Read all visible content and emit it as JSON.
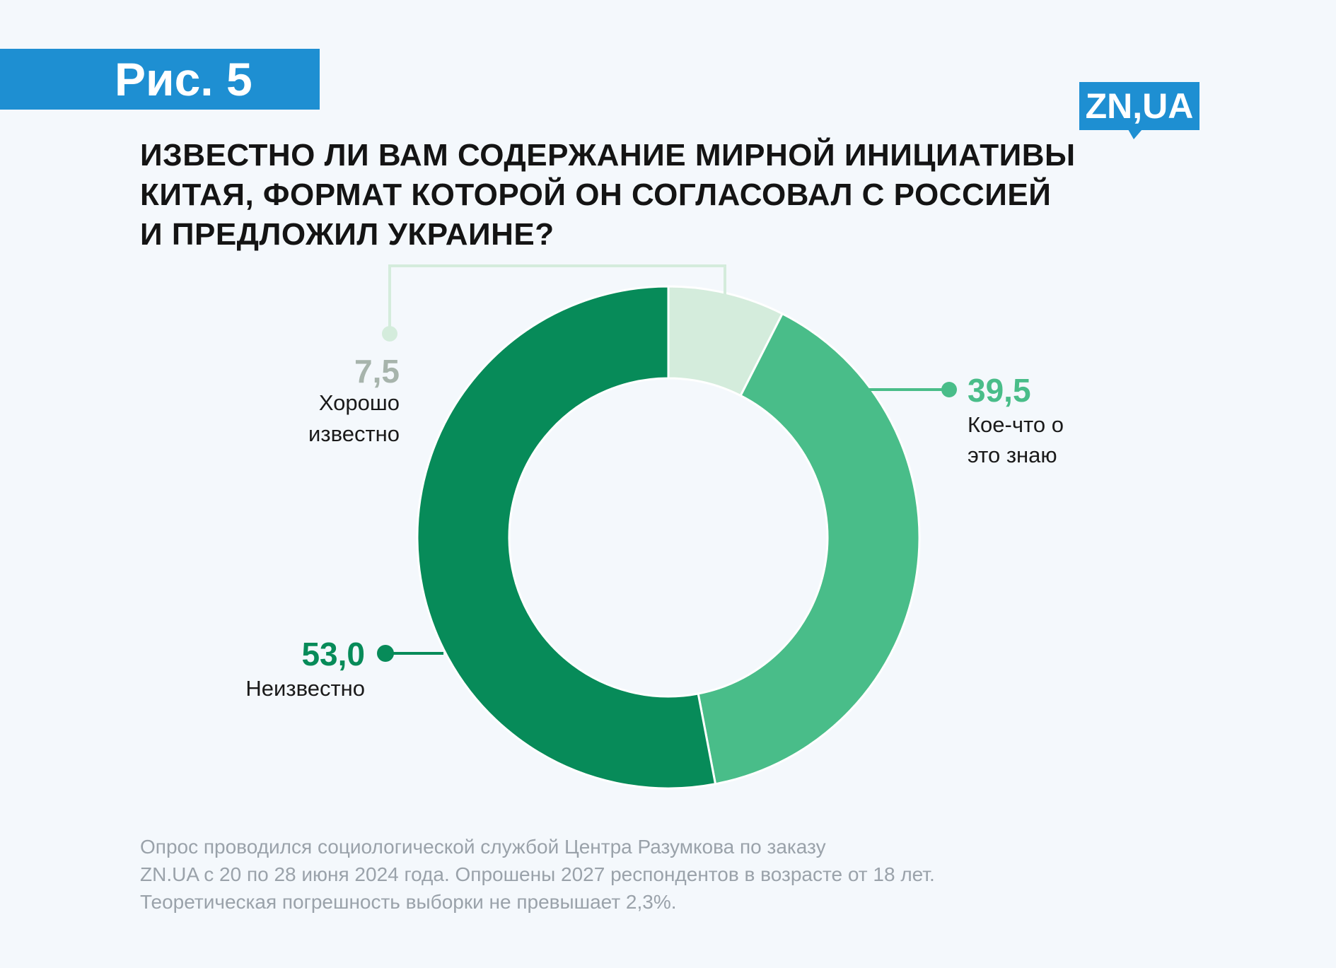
{
  "figure_label": "Рис. 5",
  "logo_text": "ZN,UA",
  "title": "ИЗВЕСТНО ЛИ ВАМ СОДЕРЖАНИЕ МИРНОЙ ИНИЦИАТИВЫ\nКИТАЯ, ФОРМАТ КОТОРОЙ ОН СОГЛАСОВАЛ С РОССИЕЙ\nИ ПРЕДЛОЖИЛ УКРАИНЕ?",
  "footnote": "Опрос проводился социологической службой Центра Разумкова по заказу\nZN.UA с 20 по 28 июня 2024 года. Опрошены 2027 респондентов в возрасте от 18 лет.\nТеоретическая погрешность выборки не превышает 2,3%.",
  "colors": {
    "brand": "#1e8fd2",
    "background": "#f4f8fc"
  },
  "chart_data": {
    "type": "pie",
    "variant": "donut",
    "slices": [
      {
        "value": 7.5,
        "value_label": "7,5",
        "label": "Хорошо известно",
        "label_lines": [
          "Хорошо",
          "известно"
        ],
        "color": "#d4ecdc",
        "value_color": "#a7b4ac"
      },
      {
        "value": 39.5,
        "value_label": "39,5",
        "label": "Кое-что о это знаю",
        "label_lines": [
          "Кое-что о",
          "это знаю"
        ],
        "color": "#49bd89",
        "value_color": "#49bd89"
      },
      {
        "value": 53.0,
        "value_label": "53,0",
        "label": "Неизвестно",
        "label_lines": [
          "Неизвестно"
        ],
        "color": "#078b59",
        "value_color": "#078b59"
      }
    ]
  }
}
